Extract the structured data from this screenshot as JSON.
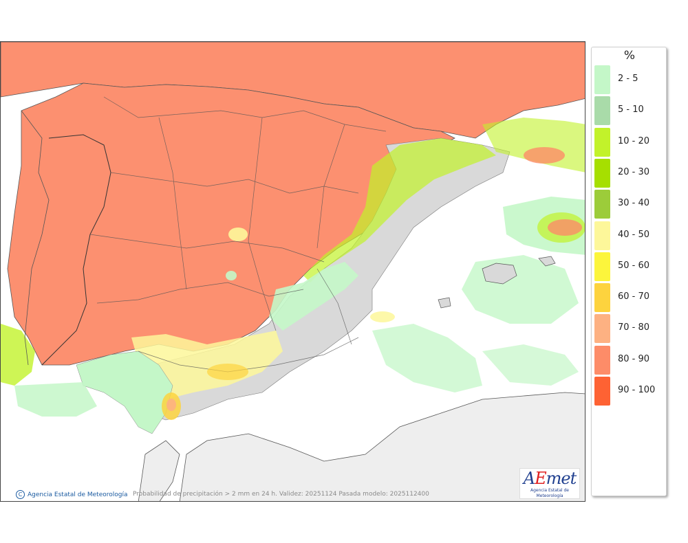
{
  "map": {
    "caption": "Probabilidad de precipitación > 2 mm en 24 h. Validez: 20251124 Pasada modelo: 2025112400",
    "copyright": "Agencia Estatal de Meteorología",
    "copyright_icon": "copyright-icon",
    "logo_text": "AEmet",
    "logo_subtitle": "Agencia Estatal de Meteorología"
  },
  "legend": {
    "unit": "%",
    "items": [
      {
        "label": "2 - 5",
        "color": "#c4f7c8"
      },
      {
        "label": "5 - 10",
        "color": "#a9dba9"
      },
      {
        "label": "10 - 20",
        "color": "#c2f22a"
      },
      {
        "label": "20 - 30",
        "color": "#a6df00"
      },
      {
        "label": "30 - 40",
        "color": "#9ccc3a"
      },
      {
        "label": "40 - 50",
        "color": "#fdf79a"
      },
      {
        "label": "50 - 60",
        "color": "#fcf53c"
      },
      {
        "label": "60 - 70",
        "color": "#fdd33e"
      },
      {
        "label": "70 - 80",
        "color": "#fdb182"
      },
      {
        "label": "80 - 90",
        "color": "#fd8c68"
      },
      {
        "label": "90 - 100",
        "color": "#fe6233"
      }
    ]
  }
}
